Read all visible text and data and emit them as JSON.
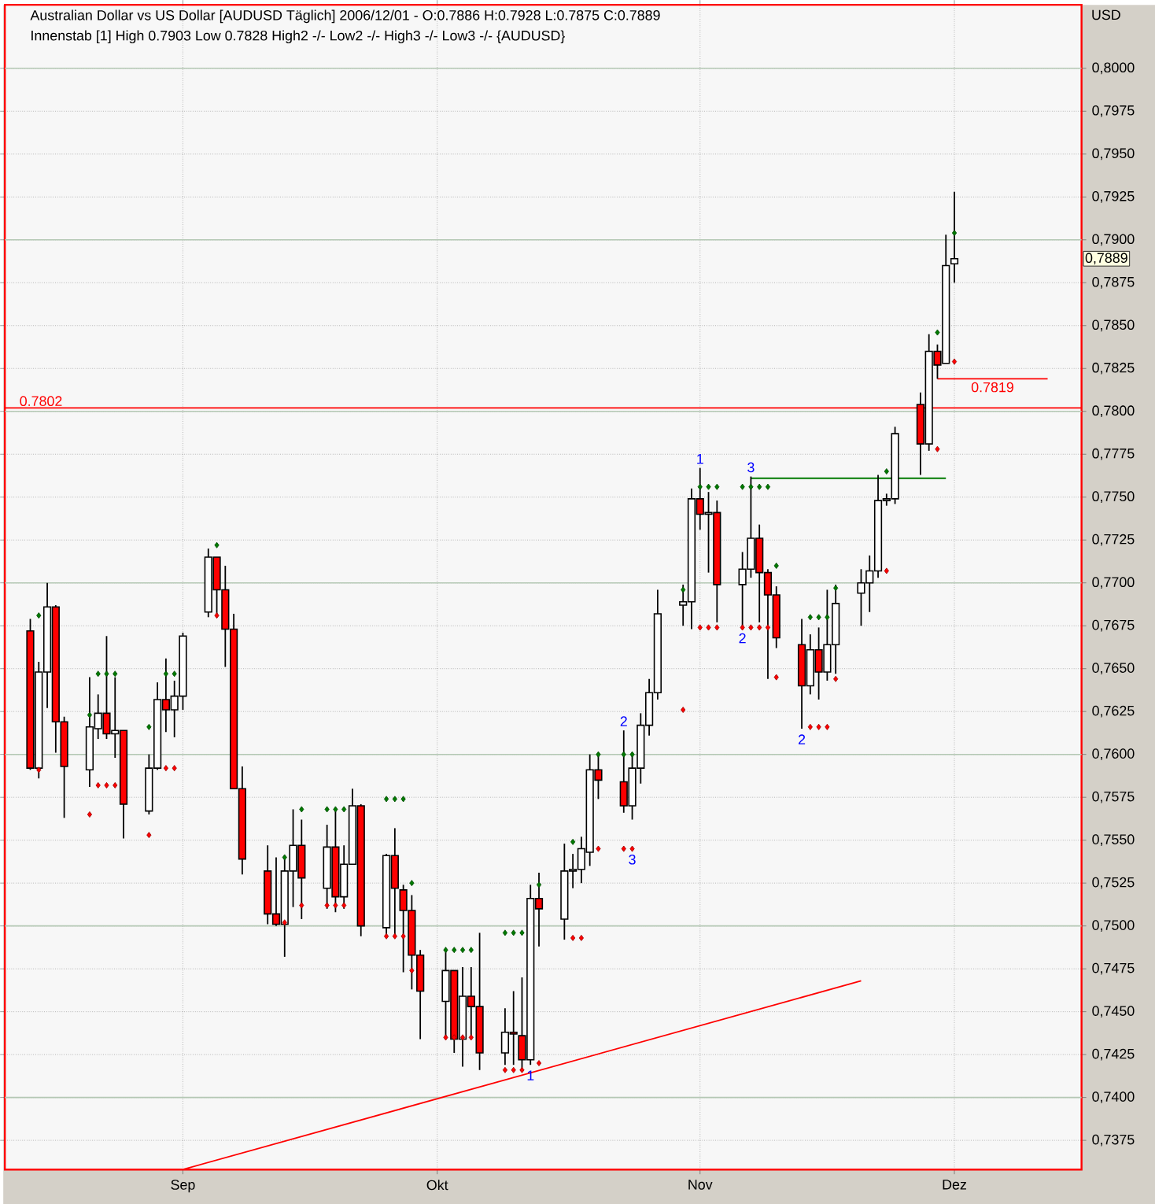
{
  "chart_data": {
    "type": "candlestick",
    "title": "Australian Dollar vs US Dollar [AUDUSD  Täglich] 2006/12/01 - O:0.7886 H:0.7928 L:0.7875 C:0.7889",
    "subtitle": "Innenstab [1] High 0.7903 Low 0.7828 High2 -/- Low2 -/- High3 -/- Low3 -/- {AUDUSD}",
    "ylabel": "USD",
    "x": [
      "2006-08-14",
      "2006-08-15",
      "2006-08-16",
      "2006-08-17",
      "2006-08-18",
      "2006-08-21",
      "2006-08-22",
      "2006-08-23",
      "2006-08-24",
      "2006-08-25",
      "2006-08-28",
      "2006-08-29",
      "2006-08-30",
      "2006-08-31",
      "2006-09-01",
      "2006-09-04",
      "2006-09-05",
      "2006-09-06",
      "2006-09-07",
      "2006-09-08",
      "2006-09-11",
      "2006-09-12",
      "2006-09-13",
      "2006-09-14",
      "2006-09-15",
      "2006-09-18",
      "2006-09-19",
      "2006-09-20",
      "2006-09-21",
      "2006-09-22",
      "2006-09-25",
      "2006-09-26",
      "2006-09-27",
      "2006-09-28",
      "2006-09-29",
      "2006-10-02",
      "2006-10-03",
      "2006-10-04",
      "2006-10-05",
      "2006-10-06",
      "2006-10-09",
      "2006-10-10",
      "2006-10-11",
      "2006-10-12",
      "2006-10-13",
      "2006-10-16",
      "2006-10-17",
      "2006-10-18",
      "2006-10-19",
      "2006-10-20",
      "2006-10-23",
      "2006-10-24",
      "2006-10-25",
      "2006-10-26",
      "2006-10-27",
      "2006-10-30",
      "2006-10-31",
      "2006-11-01",
      "2006-11-02",
      "2006-11-03",
      "2006-11-06",
      "2006-11-07",
      "2006-11-08",
      "2006-11-09",
      "2006-11-10",
      "2006-11-13",
      "2006-11-14",
      "2006-11-15",
      "2006-11-16",
      "2006-11-17",
      "2006-11-20",
      "2006-11-21",
      "2006-11-22",
      "2006-11-23",
      "2006-11-24",
      "2006-11-27",
      "2006-11-28",
      "2006-11-29",
      "2006-11-30",
      "2006-12-01"
    ],
    "ohlc": [
      [
        0.7672,
        0.7679,
        0.7591,
        0.7592
      ],
      [
        0.7592,
        0.7654,
        0.7586,
        0.7648
      ],
      [
        0.7648,
        0.77,
        0.7627,
        0.7686
      ],
      [
        0.7686,
        0.7687,
        0.7601,
        0.7619
      ],
      [
        0.7619,
        0.7622,
        0.7563,
        0.7593
      ],
      [
        0.7591,
        0.7645,
        0.7581,
        0.7616
      ],
      [
        0.7615,
        0.7635,
        0.7609,
        0.7624
      ],
      [
        0.7624,
        0.7669,
        0.7609,
        0.7612
      ],
      [
        0.7612,
        0.7645,
        0.7598,
        0.7614
      ],
      [
        0.7614,
        0.7614,
        0.7551,
        0.7571
      ],
      [
        0.7567,
        0.76,
        0.7565,
        0.7592
      ],
      [
        0.7592,
        0.7642,
        0.7591,
        0.7632
      ],
      [
        0.7632,
        0.7656,
        0.7613,
        0.7626
      ],
      [
        0.7626,
        0.7643,
        0.761,
        0.7634
      ],
      [
        0.7634,
        0.7671,
        0.7626,
        0.7669
      ],
      [
        0.7683,
        0.772,
        0.768,
        0.7715
      ],
      [
        0.7715,
        0.7715,
        0.768,
        0.7696
      ],
      [
        0.7696,
        0.771,
        0.7651,
        0.7673
      ],
      [
        0.7673,
        0.7682,
        0.758,
        0.758
      ],
      [
        0.758,
        0.7593,
        0.753,
        0.7539
      ],
      [
        0.7532,
        0.7547,
        0.7501,
        0.7507
      ],
      [
        0.7507,
        0.754,
        0.75,
        0.7501
      ],
      [
        0.7501,
        0.754,
        0.7482,
        0.7532
      ],
      [
        0.7532,
        0.7568,
        0.7511,
        0.7547
      ],
      [
        0.7547,
        0.7562,
        0.7504,
        0.7528
      ],
      [
        0.7522,
        0.7559,
        0.751,
        0.7546
      ],
      [
        0.7546,
        0.7567,
        0.7508,
        0.7517
      ],
      [
        0.7517,
        0.7547,
        0.751,
        0.7536
      ],
      [
        0.7536,
        0.758,
        0.7536,
        0.757
      ],
      [
        0.757,
        0.7571,
        0.7494,
        0.75
      ],
      [
        0.7499,
        0.7542,
        0.7495,
        0.7541
      ],
      [
        0.7541,
        0.7557,
        0.7493,
        0.7522
      ],
      [
        0.7521,
        0.7524,
        0.7473,
        0.7509
      ],
      [
        0.7509,
        0.7518,
        0.7463,
        0.7483
      ],
      [
        0.7483,
        0.7486,
        0.7434,
        0.7462
      ],
      [
        0.7456,
        0.7486,
        0.7434,
        0.7474
      ],
      [
        0.7474,
        0.7474,
        0.7426,
        0.7434
      ],
      [
        0.7434,
        0.7476,
        0.7418,
        0.7459
      ],
      [
        0.7459,
        0.7476,
        0.7434,
        0.7453
      ],
      [
        0.7453,
        0.7496,
        0.7416,
        0.7426
      ],
      [
        0.7426,
        0.7452,
        0.7419,
        0.7438
      ],
      [
        0.7438,
        0.7462,
        0.7419,
        0.7437
      ],
      [
        0.7436,
        0.747,
        0.7416,
        0.7422
      ],
      [
        0.7422,
        0.7524,
        0.7419,
        0.7516
      ],
      [
        0.7516,
        0.7531,
        0.7488,
        0.751
      ],
      [
        0.7504,
        0.7548,
        0.7492,
        0.7532
      ],
      [
        0.7532,
        0.7542,
        0.7522,
        0.7533
      ],
      [
        0.7533,
        0.7552,
        0.7525,
        0.7545
      ],
      [
        0.7543,
        0.76,
        0.7535,
        0.7591
      ],
      [
        0.7591,
        0.76,
        0.7574,
        0.7585
      ],
      [
        0.7584,
        0.7614,
        0.7566,
        0.757
      ],
      [
        0.757,
        0.7601,
        0.7562,
        0.7592
      ],
      [
        0.7592,
        0.7624,
        0.7583,
        0.7617
      ],
      [
        0.7617,
        0.7644,
        0.7611,
        0.7636
      ],
      [
        0.7636,
        0.7696,
        0.7632,
        0.7682
      ],
      [
        0.7687,
        0.7699,
        0.7675,
        0.7689
      ],
      [
        0.7689,
        0.7755,
        0.7673,
        0.7749
      ],
      [
        0.7749,
        0.7767,
        0.7731,
        0.774
      ],
      [
        0.774,
        0.7753,
        0.7706,
        0.7741
      ],
      [
        0.7741,
        0.7748,
        0.7677,
        0.7699
      ],
      [
        0.7699,
        0.7718,
        0.7674,
        0.7708
      ],
      [
        0.7708,
        0.7762,
        0.7703,
        0.7726
      ],
      [
        0.7726,
        0.7734,
        0.7677,
        0.7706
      ],
      [
        0.7706,
        0.7708,
        0.7644,
        0.7693
      ],
      [
        0.7693,
        0.7698,
        0.7662,
        0.7668
      ],
      [
        0.7664,
        0.7679,
        0.7615,
        0.764
      ],
      [
        0.764,
        0.767,
        0.7635,
        0.7661
      ],
      [
        0.7661,
        0.7674,
        0.7632,
        0.7648
      ],
      [
        0.7648,
        0.7696,
        0.7643,
        0.7664
      ],
      [
        0.7664,
        0.7699,
        0.7647,
        0.7688
      ],
      [
        0.7694,
        0.7708,
        0.7675,
        0.77
      ],
      [
        0.77,
        0.7716,
        0.7683,
        0.7707
      ],
      [
        0.7707,
        0.7763,
        0.7703,
        0.7748
      ],
      [
        0.7748,
        0.7752,
        0.7745,
        0.7749
      ],
      [
        0.7749,
        0.7791,
        0.7746,
        0.7787
      ],
      [
        0.7804,
        0.7811,
        0.7763,
        0.7781
      ],
      [
        0.7781,
        0.7845,
        0.7777,
        0.7835
      ],
      [
        0.7835,
        0.7839,
        0.7819,
        0.7827
      ],
      [
        0.7828,
        0.7903,
        0.7828,
        0.7885
      ],
      [
        0.7886,
        0.7928,
        0.7875,
        0.7889
      ]
    ],
    "colors": [
      "#ff0000",
      "#ffffff",
      "#ffffff",
      "#ff0000",
      "#ff0000",
      "#ffffff",
      "#ffffff",
      "#ff0000",
      "#ffffff",
      "#ff0000",
      "#ffffff",
      "#ffffff",
      "#ff0000",
      "#ffffff",
      "#ffffff",
      "#ffffff",
      "#ff0000",
      "#ff0000",
      "#ff0000",
      "#ff0000",
      "#ff0000",
      "#ff0000",
      "#ffffff",
      "#ffffff",
      "#ff0000",
      "#ffffff",
      "#ff0000",
      "#ffffff",
      "#ffffff",
      "#ff0000",
      "#ffffff",
      "#ff0000",
      "#ff0000",
      "#ff0000",
      "#ff0000",
      "#ffffff",
      "#ff0000",
      "#ffffff",
      "#ff0000",
      "#ff0000",
      "#ffffff",
      "#ff0000",
      "#ff0000",
      "#ffffff",
      "#ff0000",
      "#ffffff",
      "#ffffff",
      "#ffffff",
      "#ffffff",
      "#ff0000",
      "#ff0000",
      "#ffffff",
      "#ffffff",
      "#ffffff",
      "#ffffff",
      "#ffffff",
      "#ffffff",
      "#ff0000",
      "#ffffff",
      "#ff0000",
      "#ffffff",
      "#ffffff",
      "#ff0000",
      "#ff0000",
      "#ff0000",
      "#ff0000",
      "#ffffff",
      "#ff0000",
      "#ffffff",
      "#ffffff",
      "#ffffff",
      "#ffffff",
      "#ffffff",
      "#ffffff",
      "#ffffff",
      "#ff0000",
      "#ffffff",
      "#ff0000",
      "#ffffff",
      "#ffffff"
    ],
    "series": [
      {
        "type": "scatter",
        "color": "#007a00",
        "marker": "diamond",
        "x": [
          "2006-08-15",
          "2006-08-21",
          "2006-08-22",
          "2006-08-23",
          "2006-08-24",
          "2006-08-28",
          "2006-08-30",
          "2006-08-31",
          "2006-09-05",
          "2006-09-13",
          "2006-09-15",
          "2006-09-18",
          "2006-09-19",
          "2006-09-20",
          "2006-09-25",
          "2006-09-26",
          "2006-09-27",
          "2006-09-28",
          "2006-10-02",
          "2006-10-03",
          "2006-10-04",
          "2006-10-05",
          "2006-10-09",
          "2006-10-10",
          "2006-10-11",
          "2006-10-13",
          "2006-10-17",
          "2006-10-20",
          "2006-10-23",
          "2006-10-24",
          "2006-10-30",
          "2006-11-01",
          "2006-11-02",
          "2006-11-03",
          "2006-11-06",
          "2006-11-07",
          "2006-11-08",
          "2006-11-09",
          "2006-11-10",
          "2006-11-14",
          "2006-11-15",
          "2006-11-16",
          "2006-11-17",
          "2006-11-23",
          "2006-11-29",
          "2006-12-01"
        ],
        "values": [
          0.7681,
          0.7623,
          0.7647,
          0.7647,
          0.7647,
          0.7616,
          0.7647,
          0.7647,
          0.7722,
          0.754,
          0.7568,
          0.7568,
          0.7568,
          0.7568,
          0.7574,
          0.7574,
          0.7574,
          0.7525,
          0.7486,
          0.7486,
          0.7486,
          0.7486,
          0.7496,
          0.7496,
          0.7496,
          0.7524,
          0.7549,
          0.76,
          0.76,
          0.76,
          0.7696,
          0.7756,
          0.7756,
          0.7756,
          0.7756,
          0.7756,
          0.7756,
          0.7756,
          0.771,
          0.768,
          0.768,
          0.768,
          0.7697,
          0.7765,
          0.7846,
          0.7904
        ]
      },
      {
        "type": "scatter",
        "color": "#ff0000",
        "marker": "diamond",
        "x": [
          "2006-08-15",
          "2006-08-21",
          "2006-08-22",
          "2006-08-23",
          "2006-08-24",
          "2006-08-28",
          "2006-08-30",
          "2006-08-31",
          "2006-09-05",
          "2006-09-13",
          "2006-09-15",
          "2006-09-18",
          "2006-09-19",
          "2006-09-20",
          "2006-09-25",
          "2006-09-26",
          "2006-09-27",
          "2006-09-28",
          "2006-10-02",
          "2006-10-03",
          "2006-10-04",
          "2006-10-05",
          "2006-10-09",
          "2006-10-10",
          "2006-10-11",
          "2006-10-13",
          "2006-10-17",
          "2006-10-18",
          "2006-10-20",
          "2006-10-23",
          "2006-10-24",
          "2006-10-30",
          "2006-11-01",
          "2006-11-02",
          "2006-11-03",
          "2006-11-06",
          "2006-11-07",
          "2006-11-08",
          "2006-11-09",
          "2006-11-10",
          "2006-11-14",
          "2006-11-15",
          "2006-11-16",
          "2006-11-17",
          "2006-11-23",
          "2006-11-29",
          "2006-12-01"
        ],
        "values": [
          0.7591,
          0.7565,
          0.7582,
          0.7582,
          0.7582,
          0.7553,
          0.7592,
          0.7592,
          0.7681,
          0.7502,
          0.7512,
          0.7512,
          0.7512,
          0.7512,
          0.7494,
          0.7494,
          0.7494,
          0.7474,
          0.7435,
          0.7435,
          0.7435,
          0.7435,
          0.7416,
          0.7416,
          0.7416,
          0.742,
          0.7493,
          0.7493,
          0.7545,
          0.7545,
          0.7545,
          0.7626,
          0.7674,
          0.7674,
          0.7674,
          0.7674,
          0.7674,
          0.7674,
          0.7674,
          0.7645,
          0.7616,
          0.7616,
          0.7616,
          0.7644,
          0.7707,
          0.7778,
          0.7829
        ]
      },
      {
        "type": "line",
        "color": "#ff0000",
        "x": [
          "2006-09-01",
          "2006-11-20"
        ],
        "values": [
          0.7358,
          0.7468
        ]
      },
      {
        "type": "line",
        "color": "#007a00",
        "x": [
          "2006-11-07",
          "2006-11-30"
        ],
        "values": [
          0.7761,
          0.7761
        ]
      },
      {
        "type": "line",
        "color": "#ff0000",
        "name": "0.7819",
        "x": [
          "2006-11-29",
          "2006-12-12"
        ],
        "values": [
          0.7819,
          0.7819
        ]
      }
    ],
    "ref_lines": [
      {
        "axis": "y",
        "value": 0.7802,
        "label": "0.7802",
        "color": "#ff0000"
      }
    ],
    "annotations": [
      {
        "text": "1",
        "x": "2006-11-01",
        "y": 0.7767
      },
      {
        "text": "3",
        "x": "2006-11-07",
        "y": 0.7762
      },
      {
        "text": "2",
        "x": "2006-11-06",
        "y": 0.7674
      },
      {
        "text": "2",
        "x": "2006-11-13",
        "y": 0.7615
      },
      {
        "text": "2",
        "x": "2006-10-23",
        "y": 0.7614
      },
      {
        "text": "3",
        "x": "2006-10-24",
        "y": 0.7545
      },
      {
        "text": "1",
        "x": "2006-10-12",
        "y": 0.7419
      },
      {
        "text": "0,7889",
        "y": 0.7889
      }
    ],
    "xlim": [
      "2006-08-11",
      "2006-12-16"
    ],
    "xticks": [
      {
        "value": "2006-09-01",
        "label": "Sep"
      },
      {
        "value": "2006-10-01",
        "label": "Okt"
      },
      {
        "value": "2006-11-01",
        "label": "Nov"
      },
      {
        "value": "2006-12-01",
        "label": "Dez"
      }
    ],
    "ylim": [
      0.7358,
      0.8037
    ],
    "yticks": [
      {
        "value": 0.7375,
        "label": "0,7375"
      },
      {
        "value": 0.74,
        "label": "0,7400"
      },
      {
        "value": 0.7425,
        "label": "0,7425"
      },
      {
        "value": 0.745,
        "label": "0,7450"
      },
      {
        "value": 0.7475,
        "label": "0,7475"
      },
      {
        "value": 0.75,
        "label": "0,7500"
      },
      {
        "value": 0.7525,
        "label": "0,7525"
      },
      {
        "value": 0.755,
        "label": "0,7550"
      },
      {
        "value": 0.7575,
        "label": "0,7575"
      },
      {
        "value": 0.76,
        "label": "0,7600"
      },
      {
        "value": 0.7625,
        "label": "0,7625"
      },
      {
        "value": 0.765,
        "label": "0,7650"
      },
      {
        "value": 0.7675,
        "label": "0,7675"
      },
      {
        "value": 0.77,
        "label": "0,7700"
      },
      {
        "value": 0.7725,
        "label": "0,7725"
      },
      {
        "value": 0.775,
        "label": "0,7750"
      },
      {
        "value": 0.7775,
        "label": "0,7775"
      },
      {
        "value": 0.78,
        "label": "0,7800"
      },
      {
        "value": 0.7825,
        "label": "0,7825"
      },
      {
        "value": 0.785,
        "label": "0,7850"
      },
      {
        "value": 0.7875,
        "label": "0,7875"
      },
      {
        "value": 0.79,
        "label": "0,7900"
      },
      {
        "value": 0.7925,
        "label": "0,7925"
      },
      {
        "value": 0.795,
        "label": "0,7950"
      },
      {
        "value": 0.7975,
        "label": "0,7975"
      },
      {
        "value": 0.8,
        "label": "0,8000"
      }
    ],
    "grid": true
  }
}
